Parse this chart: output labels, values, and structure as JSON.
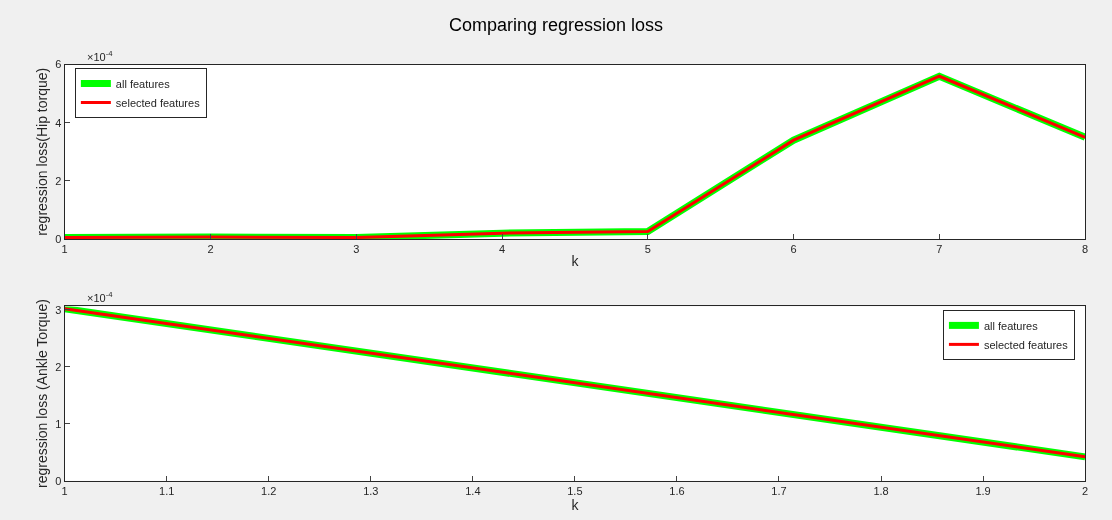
{
  "chart_data": [
    {
      "type": "line",
      "title": "Comparing regression loss",
      "xlabel": "k",
      "ylabel": "regression loss(Hip torque)",
      "x": [
        1,
        2,
        3,
        4,
        5,
        6,
        7,
        8
      ],
      "series": [
        {
          "name": "all features",
          "color": "#00ff00",
          "values": [
            0.05,
            0.07,
            0.05,
            0.2,
            0.26,
            3.4,
            5.6,
            3.5
          ]
        },
        {
          "name": "selected features",
          "color": "#ff0000",
          "values": [
            0.05,
            0.07,
            0.05,
            0.2,
            0.26,
            3.4,
            5.6,
            3.5
          ]
        }
      ],
      "xlim": [
        1,
        8
      ],
      "xticks": [
        1,
        2,
        3,
        4,
        5,
        6,
        7,
        8
      ],
      "ylim": [
        0,
        6
      ],
      "yticks": [
        0,
        2,
        4,
        6
      ],
      "annotations": [
        "×10$^{-4}$"
      ],
      "legend": "top left",
      "grid": false
    },
    {
      "type": "line",
      "xlabel": "k",
      "ylabel": "regression loss (Ankle Torque)",
      "x": [
        1,
        2
      ],
      "series": [
        {
          "name": "all features",
          "color": "#00ff00",
          "values": [
            3.02,
            0.42
          ]
        },
        {
          "name": "selected features",
          "color": "#ff0000",
          "values": [
            3.02,
            0.42
          ]
        }
      ],
      "xlim": [
        1,
        2
      ],
      "xticks": [
        1,
        1.1,
        1.2,
        1.3,
        1.4,
        1.5,
        1.6,
        1.7,
        1.8,
        1.9,
        2
      ],
      "ylim": [
        0,
        3.06
      ],
      "yticks": [
        0,
        1,
        2,
        3
      ],
      "annotations": [
        "×10$^{-4}$"
      ],
      "legend": "top right",
      "grid": false
    }
  ]
}
